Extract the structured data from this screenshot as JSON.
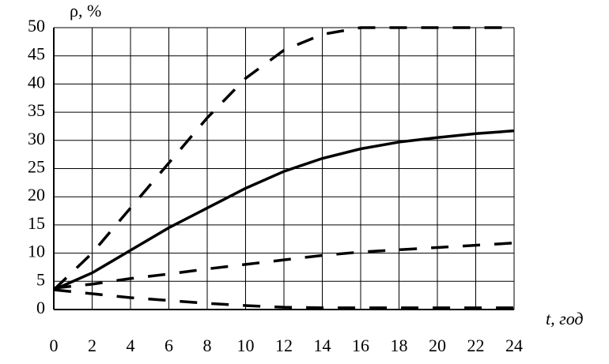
{
  "chart_data": {
    "type": "line",
    "y_label": "ρ, %",
    "x_label": "t, год",
    "x": [
      0,
      2,
      4,
      6,
      8,
      10,
      12,
      14,
      16,
      18,
      20,
      22,
      24
    ],
    "series": [
      {
        "color": "#000000",
        "dash": "solid",
        "values": [
          3.5,
          6.5,
          10.5,
          14.5,
          18,
          21.5,
          24.5,
          26.8,
          28.5,
          29.7,
          30.5,
          31.2,
          31.7
        ]
      },
      {
        "color": "#000000",
        "dash": "dashed",
        "values": [
          3.5,
          10,
          18,
          26,
          34,
          41,
          46,
          48.8,
          50,
          50,
          50,
          50,
          50
        ]
      },
      {
        "color": "#000000",
        "dash": "dashed",
        "values": [
          3.8,
          4.5,
          5.5,
          6.3,
          7.2,
          8,
          8.8,
          9.6,
          10.2,
          10.6,
          11,
          11.4,
          11.8
        ]
      },
      {
        "color": "#000000",
        "dash": "dashed",
        "values": [
          3.5,
          2.8,
          2.1,
          1.6,
          1.1,
          0.7,
          0.4,
          0.3,
          0.3,
          0.3,
          0.3,
          0.3,
          0.3
        ]
      }
    ],
    "xlim": [
      0,
      24
    ],
    "xticks": [
      0,
      2,
      4,
      6,
      8,
      10,
      12,
      14,
      16,
      18,
      20,
      22,
      24
    ],
    "ylim": [
      0,
      50
    ],
    "yticks": [
      0,
      5,
      10,
      15,
      20,
      25,
      30,
      35,
      40,
      45,
      50
    ],
    "grid": true
  }
}
